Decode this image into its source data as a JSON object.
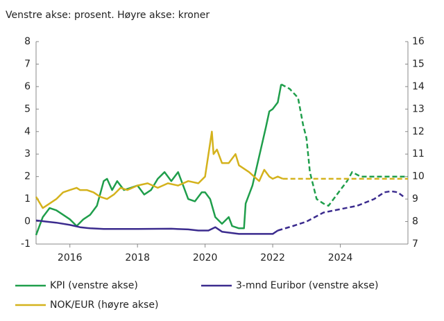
{
  "chart_data": {
    "type": "line",
    "subtitle": "Venstre akse: prosent.  Høyre akse: kroner",
    "xlim": [
      2015,
      2026
    ],
    "xticks": [
      2016,
      2018,
      2020,
      2022,
      2024
    ],
    "ylim": [
      -1,
      8
    ],
    "yticks": [
      -1,
      0,
      1,
      2,
      3,
      4,
      5,
      6,
      7,
      8
    ],
    "y2lim": [
      7,
      16
    ],
    "y2ticks": [
      7,
      8,
      9,
      10,
      11,
      12,
      13,
      14,
      15,
      16
    ],
    "grid": false,
    "series": [
      {
        "name": "KPI (venstre akse)",
        "color": "#1f9e4b",
        "dashed_from": 2022.25,
        "x": [
          2015.0,
          2015.2,
          2015.4,
          2015.6,
          2015.8,
          2016.0,
          2016.2,
          2016.4,
          2016.6,
          2016.8,
          2017.0,
          2017.1,
          2017.25,
          2017.4,
          2017.6,
          2017.8,
          2018.0,
          2018.2,
          2018.4,
          2018.6,
          2018.8,
          2019.0,
          2019.2,
          2019.35,
          2019.5,
          2019.7,
          2019.9,
          2020.0,
          2020.15,
          2020.3,
          2020.5,
          2020.7,
          2020.8,
          2021.0,
          2021.15,
          2021.2,
          2021.4,
          2021.6,
          2021.8,
          2021.9,
          2022.0,
          2022.15,
          2022.25,
          2022.5,
          2022.75,
          2022.9,
          2023.0,
          2023.1,
          2023.3,
          2023.5,
          2023.65,
          2023.8,
          2024.0,
          2024.2,
          2024.35,
          2024.6,
          2025.0,
          2025.5,
          2026.0
        ],
        "values": [
          -0.6,
          0.2,
          0.6,
          0.5,
          0.3,
          0.1,
          -0.2,
          0.1,
          0.3,
          0.7,
          1.8,
          1.9,
          1.4,
          1.8,
          1.4,
          1.5,
          1.6,
          1.2,
          1.4,
          1.9,
          2.2,
          1.8,
          2.2,
          1.6,
          1.0,
          0.9,
          1.3,
          1.3,
          1.0,
          0.2,
          -0.1,
          0.2,
          -0.2,
          -0.3,
          -0.3,
          0.8,
          1.6,
          2.9,
          4.2,
          4.9,
          5.0,
          5.3,
          6.1,
          5.9,
          5.5,
          4.3,
          3.7,
          2.2,
          1.0,
          0.8,
          0.7,
          1.0,
          1.4,
          1.8,
          2.2,
          2.0,
          2.0,
          2.0,
          2.0
        ]
      },
      {
        "name": "3-mnd Euribor (venstre akse)",
        "color": "#3b2b8e",
        "dashed_from": 2022.15,
        "x": [
          2015.0,
          2015.3,
          2015.6,
          2016.0,
          2016.3,
          2016.6,
          2017.0,
          2018.0,
          2019.0,
          2019.5,
          2019.8,
          2020.1,
          2020.3,
          2020.5,
          2021.0,
          2021.5,
          2022.0,
          2022.15,
          2022.6,
          2023.0,
          2023.5,
          2024.0,
          2024.5,
          2025.0,
          2025.3,
          2025.5,
          2025.7,
          2025.92
        ],
        "values": [
          0.05,
          0.0,
          -0.05,
          -0.15,
          -0.25,
          -0.3,
          -0.33,
          -0.33,
          -0.32,
          -0.35,
          -0.4,
          -0.4,
          -0.25,
          -0.45,
          -0.55,
          -0.55,
          -0.55,
          -0.4,
          -0.2,
          0.0,
          0.4,
          0.55,
          0.7,
          1.0,
          1.3,
          1.35,
          1.3,
          1.05
        ]
      },
      {
        "name": "NOK/EUR (høyre akse)",
        "color": "#d4b21c",
        "axis": "y2",
        "dashed_from": 2022.3,
        "x": [
          2015.0,
          2015.2,
          2015.4,
          2015.6,
          2015.8,
          2016.0,
          2016.2,
          2016.3,
          2016.5,
          2016.7,
          2016.9,
          2017.1,
          2017.3,
          2017.5,
          2017.7,
          2018.0,
          2018.3,
          2018.6,
          2018.9,
          2019.2,
          2019.5,
          2019.8,
          2020.0,
          2020.2,
          2020.25,
          2020.35,
          2020.5,
          2020.7,
          2020.9,
          2021.0,
          2021.3,
          2021.6,
          2021.75,
          2021.9,
          2022.0,
          2022.15,
          2022.3,
          2026.0
        ],
        "values": [
          9.1,
          8.6,
          8.8,
          9.0,
          9.3,
          9.4,
          9.5,
          9.4,
          9.4,
          9.3,
          9.1,
          9.0,
          9.2,
          9.5,
          9.4,
          9.6,
          9.7,
          9.5,
          9.7,
          9.6,
          9.8,
          9.7,
          10.0,
          12.0,
          11.0,
          11.2,
          10.6,
          10.6,
          11.0,
          10.5,
          10.2,
          9.8,
          10.3,
          10.0,
          9.9,
          10.0,
          9.9,
          9.9
        ]
      }
    ]
  }
}
